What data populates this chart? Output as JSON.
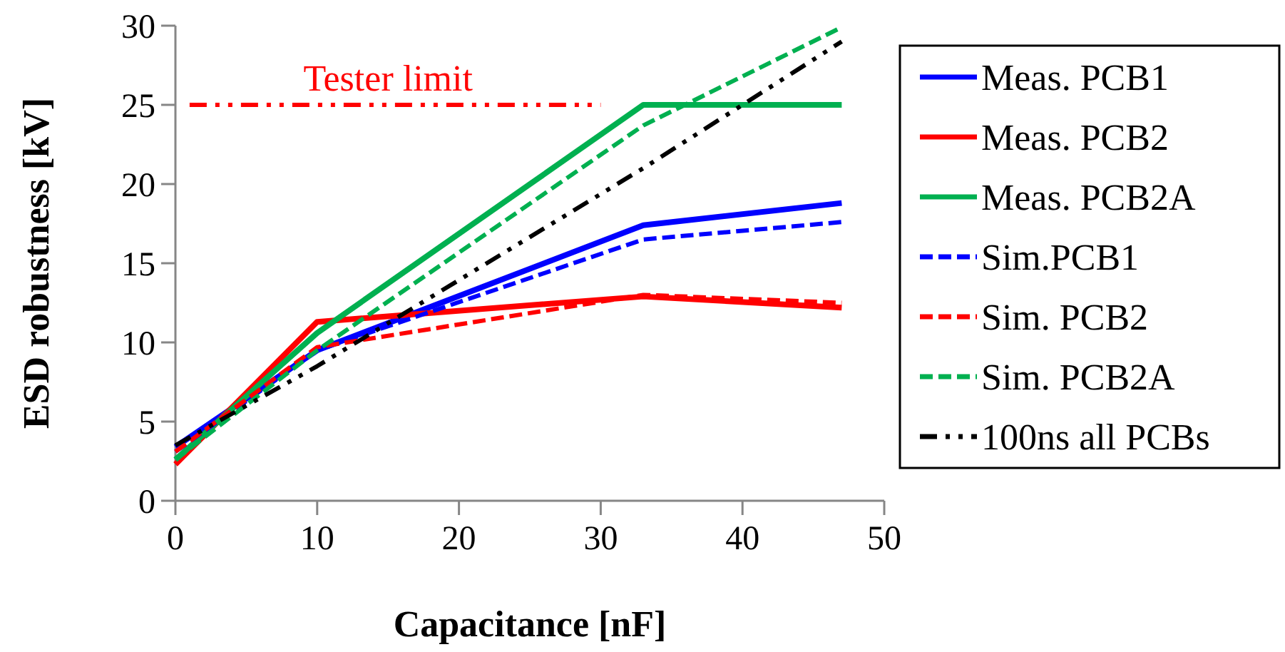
{
  "chart_data": {
    "type": "line",
    "xlabel": "Capacitance [nF]",
    "ylabel": "ESD robustness [kV]",
    "x": [
      0,
      10,
      33,
      47
    ],
    "xlim": [
      0,
      50
    ],
    "xticks": [
      0,
      10,
      20,
      30,
      40,
      50
    ],
    "ylim": [
      0,
      30
    ],
    "yticks": [
      0,
      5,
      10,
      15,
      20,
      25,
      30
    ],
    "grid": false,
    "legend": "right",
    "series": [
      {
        "name": "Meas. PCB1",
        "color": "#0000ff",
        "line_style": "solid",
        "values": [
          3.4,
          9.5,
          17.4,
          18.8
        ]
      },
      {
        "name": "Meas. PCB2",
        "color": "#ff0000",
        "line_style": "solid",
        "values": [
          2.3,
          11.3,
          12.9,
          12.2
        ]
      },
      {
        "name": "Meas. PCB2A",
        "color": "#00b050",
        "line_style": "solid",
        "values": [
          2.6,
          10.6,
          25,
          25
        ]
      },
      {
        "name": "Sim.PCB1",
        "color": "#0000ff",
        "line_style": "dashed",
        "values": [
          3.1,
          9.5,
          16.5,
          17.6
        ]
      },
      {
        "name": "Sim. PCB2",
        "color": "#ff0000",
        "line_style": "dashed",
        "values": [
          3.1,
          9.7,
          13.0,
          12.5
        ]
      },
      {
        "name": "Sim. PCB2A",
        "color": "#00b050",
        "line_style": "dashed",
        "values": [
          2.6,
          9.5,
          23.7,
          29.9
        ]
      },
      {
        "name": "100ns all PCBs",
        "color": "#000000",
        "line_style": "dotted",
        "values": [
          3.5,
          8.5,
          21.0,
          29.0
        ]
      },
      {
        "color": "#ff0000",
        "line_style": "dotted",
        "x": [
          1,
          30
        ],
        "values": [
          25,
          25
        ]
      }
    ],
    "annotations": [
      {
        "text": "Tester limit",
        "x": 15,
        "y": 25
      }
    ]
  }
}
